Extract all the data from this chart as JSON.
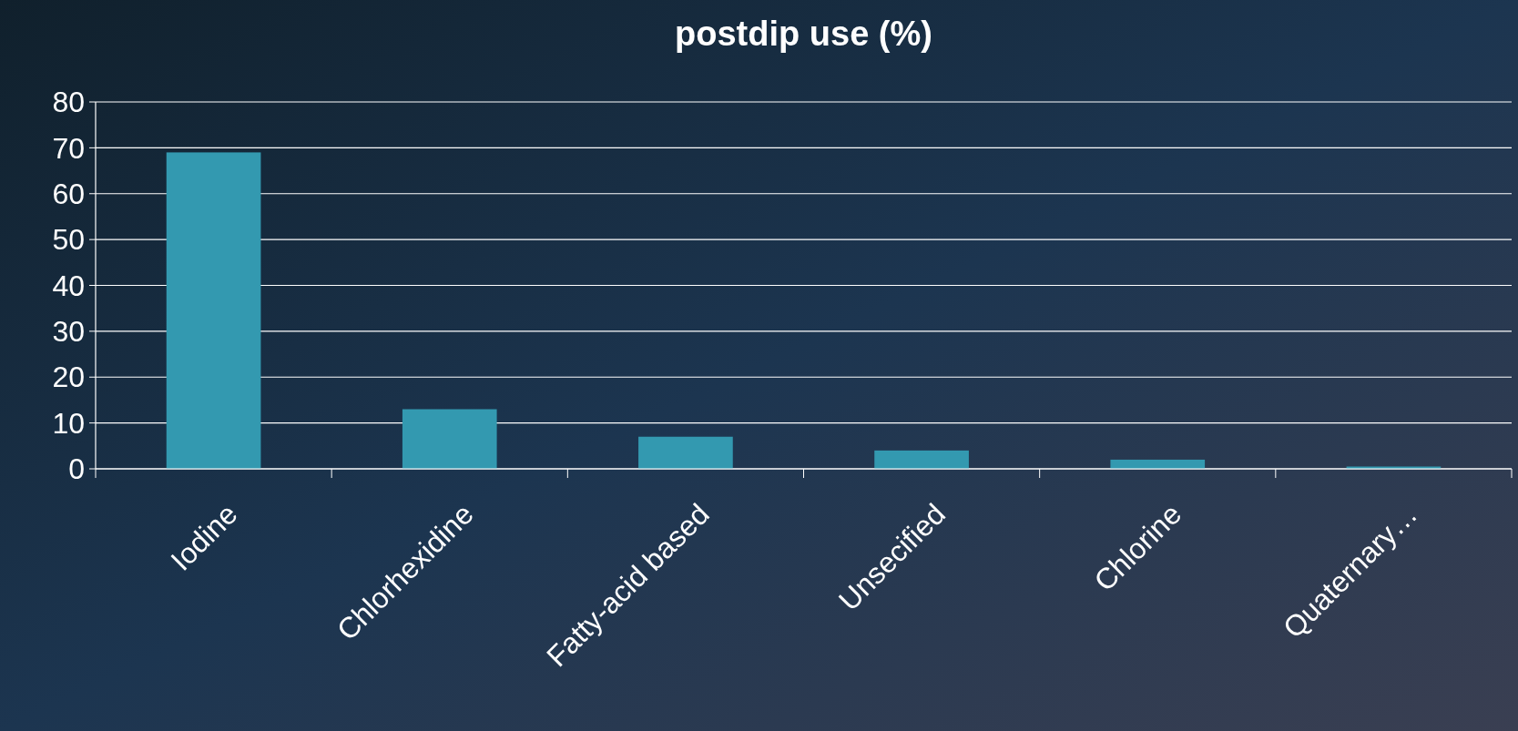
{
  "chart_data": {
    "type": "bar",
    "title": "postdip use (%)",
    "categories": [
      "Iodine",
      "Chlorhexidine",
      "Fatty-acid based",
      "Unsecified",
      "Chlorine",
      "Quaternary…"
    ],
    "values": [
      69,
      13,
      7,
      4,
      2,
      0.5
    ],
    "color": "#3399b0",
    "ylim": [
      0,
      80
    ],
    "yticks": [
      0,
      10,
      20,
      30,
      40,
      50,
      60,
      70,
      80
    ],
    "grid": "y"
  }
}
